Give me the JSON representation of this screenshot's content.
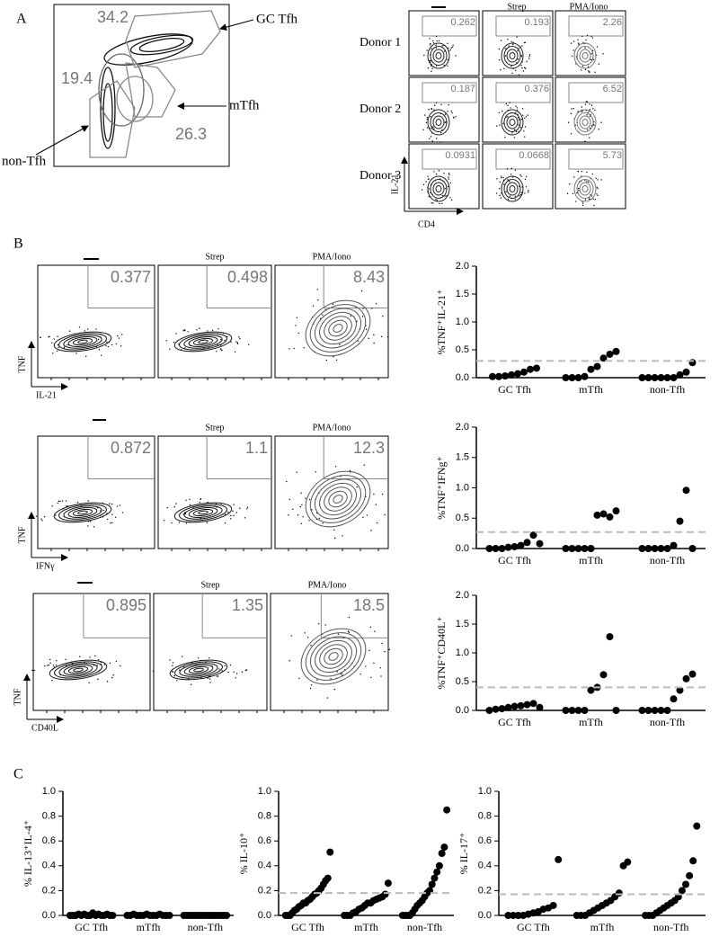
{
  "panel_labels": {
    "a": "A",
    "b": "B",
    "c": "C"
  },
  "gating": {
    "gate_names": [
      "GC Tfh",
      "mTfh",
      "non-Tfh"
    ],
    "percentages": [
      34.2,
      19.4,
      26.3
    ]
  },
  "donors": {
    "columns": [
      "Strep",
      "PMA/Iono"
    ],
    "rows": [
      "Donor 1",
      "Donor 2",
      "Donor 3"
    ],
    "values": [
      [
        0.262,
        0.193,
        2.26
      ],
      [
        0.187,
        0.376,
        6.52
      ],
      [
        0.0931,
        0.0668,
        5.73
      ]
    ],
    "y_label": "IL-21",
    "x_label": "CD4"
  },
  "flow_b": {
    "columns": [
      "Strep",
      "PMA/Iono"
    ],
    "rows": [
      {
        "values": [
          0.377,
          0.498,
          8.43
        ],
        "y_label": "TNF",
        "x_label": "IL-21"
      },
      {
        "values": [
          0.872,
          1.1,
          12.3
        ],
        "y_label": "TNF",
        "x_label": "IFNγ"
      },
      {
        "values": [
          0.895,
          1.35,
          18.5
        ],
        "y_label": "TNF",
        "x_label": "CD40L"
      }
    ]
  },
  "chart_data": [
    {
      "type": "dot",
      "y_label": "%TNF⁺IL-21⁺",
      "categories": [
        "GC Tfh",
        "mTfh",
        "non-Tfh"
      ],
      "values": [
        [
          0.02,
          0.02,
          0.03,
          0.05,
          0.07,
          0.1,
          0.15,
          0.17
        ],
        [
          0.0,
          0.0,
          0.0,
          0.02,
          0.15,
          0.2,
          0.35,
          0.42,
          0.47
        ],
        [
          0.0,
          0.0,
          0.0,
          0.0,
          0.0,
          0.0,
          0.05,
          0.1,
          0.27
        ]
      ],
      "ylim": [
        0,
        2
      ],
      "yticks": [
        {
          "value": 0,
          "label": "0.0"
        },
        {
          "value": 0.5,
          "label": "0.5"
        },
        {
          "value": 1,
          "label": "1.0"
        },
        {
          "value": 1.5,
          "label": "1.5"
        },
        {
          "value": 2,
          "label": "2.0"
        }
      ],
      "threshold": 0.3,
      "color": "#000000",
      "threshold_color": "#bbbbbb"
    },
    {
      "type": "dot",
      "y_label": "%TNF⁺IFNg⁺",
      "categories": [
        "GC Tfh",
        "mTfh",
        "non-Tfh"
      ],
      "values": [
        [
          0.0,
          0.0,
          0.0,
          0.02,
          0.03,
          0.05,
          0.1,
          0.22,
          0.08
        ],
        [
          0.0,
          0.0,
          0.0,
          0.0,
          0.0,
          0.55,
          0.57,
          0.52,
          0.62
        ],
        [
          0.0,
          0.0,
          0.0,
          0.0,
          0.0,
          0.05,
          0.45,
          0.96,
          0.0
        ]
      ],
      "ylim": [
        0,
        2
      ],
      "yticks": [
        {
          "value": 0,
          "label": "0.0"
        },
        {
          "value": 0.5,
          "label": "0.5"
        },
        {
          "value": 1,
          "label": "1.0"
        },
        {
          "value": 1.5,
          "label": "1.5"
        },
        {
          "value": 2,
          "label": "2.0"
        }
      ],
      "threshold": 0.27,
      "color": "#000000",
      "threshold_color": "#bbbbbb"
    },
    {
      "type": "dot",
      "y_label": "%TNF⁺CD40L⁺",
      "categories": [
        "GC Tfh",
        "mTfh",
        "non-Tfh"
      ],
      "values": [
        [
          0.0,
          0.02,
          0.03,
          0.05,
          0.07,
          0.08,
          0.1,
          0.12,
          0.05
        ],
        [
          0.0,
          0.0,
          0.0,
          0.0,
          0.35,
          0.4,
          0.62,
          1.28,
          0.0
        ],
        [
          0.0,
          0.0,
          0.0,
          0.0,
          0.0,
          0.2,
          0.35,
          0.55,
          0.63
        ]
      ],
      "ylim": [
        0,
        2
      ],
      "yticks": [
        {
          "value": 0,
          "label": "0.0"
        },
        {
          "value": 0.5,
          "label": "0.5"
        },
        {
          "value": 1,
          "label": "1.0"
        },
        {
          "value": 1.5,
          "label": "1.5"
        },
        {
          "value": 2,
          "label": "2.0"
        }
      ],
      "threshold": 0.4,
      "color": "#000000",
      "threshold_color": "#bbbbbb"
    },
    {
      "type": "dot",
      "y_label": "% IL-13⁺IL-4⁺",
      "categories": [
        "GC Tfh",
        "mTfh",
        "non-Tfh"
      ],
      "values": [
        [
          0.0,
          0.0,
          0.0,
          0.01,
          0.0,
          0.01,
          0.0,
          0.0,
          0.02,
          0.0,
          0.01,
          0.0,
          0.0,
          0.01,
          0.0,
          0.0
        ],
        [
          0.0,
          0.0,
          0.01,
          0.0,
          0.0,
          0.0,
          0.01,
          0.0,
          0.0,
          0.0,
          0.01,
          0.0,
          0.0,
          0.0
        ],
        [
          0.0,
          0.0,
          0.0,
          0.0,
          0.0,
          0.0,
          0.0,
          0.0,
          0.0,
          0.0,
          0.0,
          0.0,
          0.0,
          0.0,
          0.0,
          0.0
        ]
      ],
      "ylim": [
        0,
        1
      ],
      "yticks": [
        {
          "value": 0,
          "label": "0.0"
        },
        {
          "value": 0.2,
          "label": "0.2"
        },
        {
          "value": 0.4,
          "label": "0.4"
        },
        {
          "value": 0.6,
          "label": "0.6"
        },
        {
          "value": 0.8,
          "label": "0.8"
        },
        {
          "value": 1,
          "label": "1.0"
        }
      ],
      "color": "#000000"
    },
    {
      "type": "dot",
      "y_label": "% IL-10⁺",
      "categories": [
        "GC Tfh",
        "mTfh",
        "non-Tfh"
      ],
      "values": [
        [
          0.0,
          0.0,
          0.0,
          0.02,
          0.04,
          0.05,
          0.07,
          0.08,
          0.1,
          0.1,
          0.12,
          0.13,
          0.15,
          0.17,
          0.18,
          0.2,
          0.22,
          0.25,
          0.28,
          0.3,
          0.51
        ],
        [
          0.0,
          0.0,
          0.0,
          0.02,
          0.03,
          0.05,
          0.06,
          0.08,
          0.1,
          0.1,
          0.12,
          0.13,
          0.14,
          0.15,
          0.17,
          0.26
        ],
        [
          0.0,
          0.0,
          0.0,
          0.0,
          0.02,
          0.05,
          0.08,
          0.1,
          0.12,
          0.15,
          0.18,
          0.2,
          0.25,
          0.3,
          0.35,
          0.4,
          0.5,
          0.55,
          0.85
        ]
      ],
      "ylim": [
        0,
        1
      ],
      "yticks": [
        {
          "value": 0,
          "label": "0.0"
        },
        {
          "value": 0.2,
          "label": "0.2"
        },
        {
          "value": 0.4,
          "label": "0.4"
        },
        {
          "value": 0.6,
          "label": "0.6"
        },
        {
          "value": 0.8,
          "label": "0.8"
        },
        {
          "value": 1,
          "label": "1.0"
        }
      ],
      "threshold": 0.18,
      "color": "#000000",
      "threshold_color": "#bbbbbb"
    },
    {
      "type": "dot",
      "y_label": "% IL-17⁺",
      "categories": [
        "GC Tfh",
        "mTfh",
        "non-Tfh"
      ],
      "values": [
        [
          0.0,
          0.0,
          0.0,
          0.0,
          0.01,
          0.02,
          0.03,
          0.05,
          0.06,
          0.08,
          0.45
        ],
        [
          0.0,
          0.0,
          0.0,
          0.02,
          0.04,
          0.06,
          0.08,
          0.1,
          0.12,
          0.15,
          0.18,
          0.4,
          0.43
        ],
        [
          0.0,
          0.0,
          0.0,
          0.02,
          0.04,
          0.06,
          0.08,
          0.1,
          0.12,
          0.15,
          0.2,
          0.25,
          0.32,
          0.44,
          0.72
        ]
      ],
      "ylim": [
        0,
        1
      ],
      "yticks": [
        {
          "value": 0,
          "label": "0.0"
        },
        {
          "value": 0.2,
          "label": "0.2"
        },
        {
          "value": 0.4,
          "label": "0.4"
        },
        {
          "value": 0.6,
          "label": "0.6"
        },
        {
          "value": 0.8,
          "label": "0.8"
        },
        {
          "value": 1,
          "label": "1.0"
        }
      ],
      "threshold": 0.17,
      "color": "#000000",
      "threshold_color": "#bbbbbb"
    }
  ]
}
